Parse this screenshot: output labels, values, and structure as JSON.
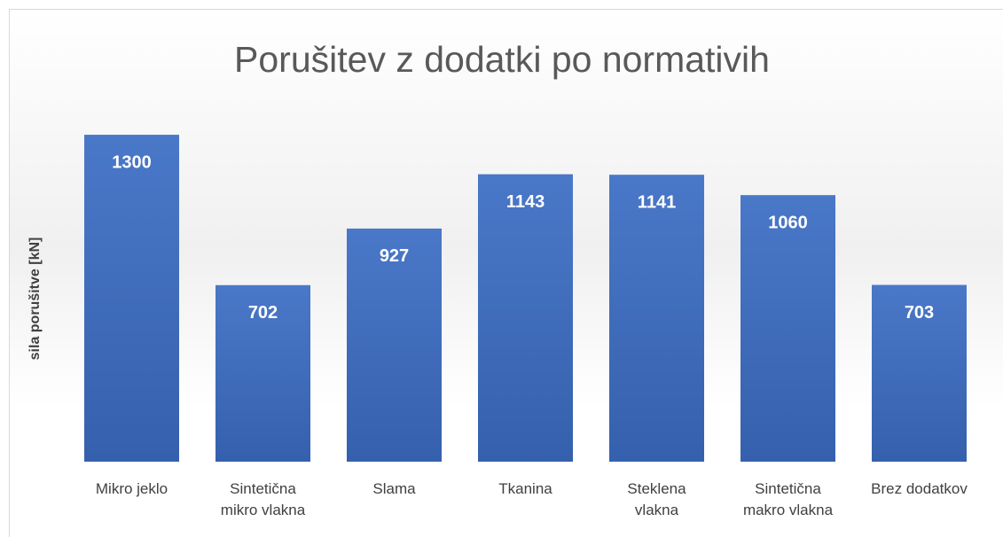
{
  "chart_data": {
    "type": "bar",
    "title": "Porušitev z dodatki po normativih",
    "y_label": "sila porušitve [kN]",
    "categories": [
      "Mikro jeklo",
      "Sintetična\nmikro vlakna",
      "Slama",
      "Tkanina",
      "Steklena\nvlakna",
      "Sintetična\nmakro vlakna",
      "Brez dodatkov"
    ],
    "values": [
      1300,
      702,
      927,
      1143,
      1141,
      1060,
      703
    ],
    "color": "#4472c4",
    "ylim": [
      0,
      1400
    ]
  }
}
